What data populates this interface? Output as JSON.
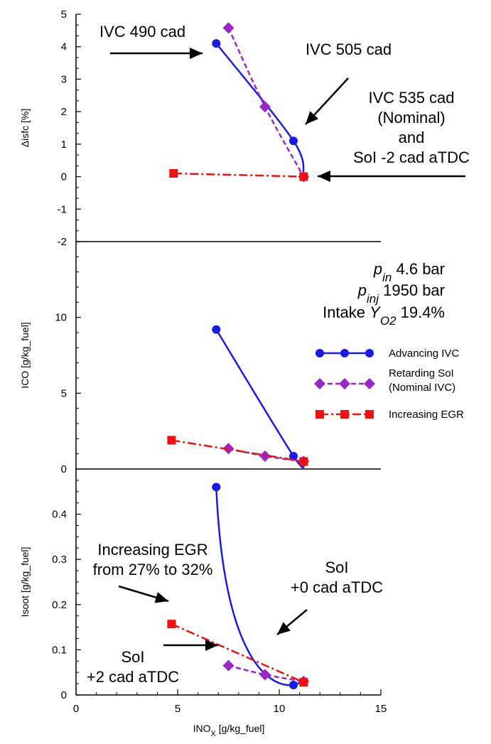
{
  "chart_data": [
    {
      "type": "line",
      "panel": "top",
      "ylabel": "Δisfc [%]",
      "ylim": [
        -2,
        5
      ],
      "yticks": [
        -2,
        -1,
        0,
        1,
        2,
        3,
        4,
        5
      ],
      "xlim": [
        0,
        15
      ],
      "series": [
        {
          "name": "Advancing IVC",
          "color": "#1a1ae6",
          "marker": "circle",
          "dash": "solid",
          "x": [
            6.9,
            10.7,
            11.2
          ],
          "y": [
            4.1,
            1.1,
            0.0
          ]
        },
        {
          "name": "Retarding SoI (Nominal IVC)",
          "color": "#9b27c9",
          "marker": "diamond",
          "dash": "dashed",
          "x": [
            7.5,
            9.3,
            11.2
          ],
          "y": [
            4.58,
            2.15,
            0.0
          ]
        },
        {
          "name": "Increasing EGR",
          "color": "#ee1111",
          "marker": "square",
          "dash": "dashdot",
          "x": [
            4.8,
            11.2
          ],
          "y": [
            0.1,
            0.0
          ]
        }
      ],
      "annotations": [
        {
          "id": "ivc490",
          "lines": [
            "IVC 490 cad"
          ]
        },
        {
          "id": "ivc505",
          "lines": [
            "IVC 505 cad"
          ]
        },
        {
          "id": "ivc535",
          "lines": [
            "IVC 535 cad",
            "(Nominal)",
            "and",
            "SoI -2 cad aTDC"
          ]
        }
      ]
    },
    {
      "type": "line",
      "panel": "middle",
      "ylabel": "ICO [g/kg_fuel]",
      "ylim": [
        0,
        15
      ],
      "yticks": [
        0,
        5,
        10
      ],
      "xlim": [
        0,
        15
      ],
      "series": [
        {
          "name": "Advancing IVC",
          "color": "#1a1ae6",
          "marker": "circle",
          "dash": "solid",
          "x": [
            6.9,
            10.7,
            11.2
          ],
          "y": [
            9.2,
            0.85,
            0.45
          ]
        },
        {
          "name": "Retarding SoI (Nominal IVC)",
          "color": "#9b27c9",
          "marker": "diamond",
          "dash": "dashed",
          "x": [
            7.5,
            9.3,
            11.2
          ],
          "y": [
            1.35,
            0.85,
            0.5
          ]
        },
        {
          "name": "Increasing EGR",
          "color": "#ee1111",
          "marker": "square",
          "dash": "dashdot",
          "x": [
            4.7,
            11.2
          ],
          "y": [
            1.9,
            0.5
          ]
        }
      ],
      "conditions": {
        "pin": {
          "sym": "p",
          "sub": "in",
          "text": " 4.6 bar"
        },
        "pinj": {
          "sym": "p",
          "sub": "inj",
          "text": " 1950 bar"
        },
        "yo2": {
          "pre": "Intake ",
          "sym": "Y",
          "sub": "O2",
          "text": " 19.4%"
        }
      },
      "legend": {
        "position": "right",
        "items": [
          {
            "lines": [
              "Advancing IVC"
            ],
            "color": "#1a1ae6",
            "marker": "circle",
            "dash": "solid"
          },
          {
            "lines": [
              "Retarding SoI",
              "(Nominal IVC)"
            ],
            "color": "#9b27c9",
            "marker": "diamond",
            "dash": "dashed"
          },
          {
            "lines": [
              "Increasing EGR"
            ],
            "color": "#ee1111",
            "marker": "square",
            "dash": "dashdot"
          }
        ]
      }
    },
    {
      "type": "line",
      "panel": "bottom",
      "ylabel": "Isoot [g/kg_fuel]",
      "ylim": [
        0,
        0.5
      ],
      "yticks": [
        0,
        0.1,
        0.2,
        0.3,
        0.4
      ],
      "xlim": [
        0,
        15
      ],
      "xticks": [
        0,
        5,
        10,
        15
      ],
      "xlabel": {
        "main": "INO",
        "sub": "X",
        "rest": " [g/kg_fuel]"
      },
      "series": [
        {
          "name": "Advancing IVC",
          "color": "#1a1ae6",
          "marker": "circle",
          "dash": "solid",
          "x": [
            6.9,
            10.7,
            11.2
          ],
          "y": [
            0.46,
            0.022,
            0.03
          ]
        },
        {
          "name": "Retarding SoI (Nominal IVC)",
          "color": "#9b27c9",
          "marker": "diamond",
          "dash": "dashed",
          "x": [
            7.5,
            9.3,
            11.2
          ],
          "y": [
            0.065,
            0.045,
            0.03
          ]
        },
        {
          "name": "Increasing EGR",
          "color": "#ee1111",
          "marker": "square",
          "dash": "dashdot",
          "x": [
            4.7,
            11.2
          ],
          "y": [
            0.157,
            0.028
          ]
        }
      ],
      "annotations": [
        {
          "id": "egr",
          "lines": [
            "Increasing EGR",
            "from 27% to 32%"
          ]
        },
        {
          "id": "soi0",
          "lines": [
            "SoI",
            "+0 cad aTDC"
          ]
        },
        {
          "id": "soi2",
          "lines": [
            "SoI",
            "+2 cad aTDC"
          ]
        }
      ]
    }
  ]
}
